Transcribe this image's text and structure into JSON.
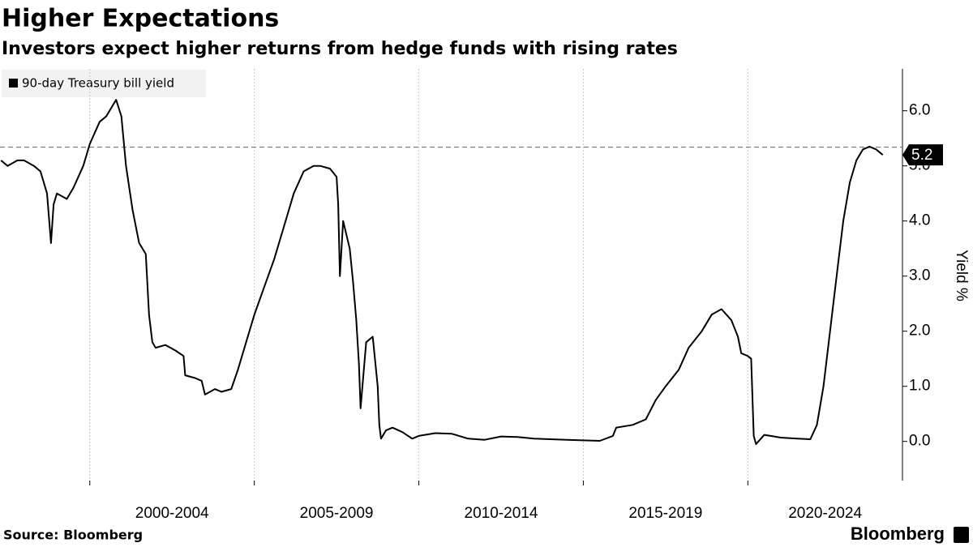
{
  "chart_data": {
    "type": "line",
    "title": "Higher Expectations",
    "subtitle": "Investors expect higher returns from hedge funds with rising rates",
    "source": "Source: Bloomberg",
    "brand": "Bloomberg",
    "y_axis_label": "Yield %",
    "xlim": [
      1997.27,
      2024.7
    ],
    "xticks": [
      {
        "value": 2000,
        "label": "2000-2004"
      },
      {
        "value": 2005,
        "label": "2005-2009"
      },
      {
        "value": 2010,
        "label": "2010-2014"
      },
      {
        "value": 2015,
        "label": "2015-2019"
      },
      {
        "value": 2020,
        "label": "2020-2024"
      }
    ],
    "ylim": [
      -0.71,
      6.76
    ],
    "yticks": [
      {
        "value": 0,
        "label": "0.0"
      },
      {
        "value": 1,
        "label": "1.0"
      },
      {
        "value": 2,
        "label": "2.0"
      },
      {
        "value": 3,
        "label": "3.0"
      },
      {
        "value": 4,
        "label": "4.0"
      },
      {
        "value": 5,
        "label": "5.0"
      },
      {
        "value": 6,
        "label": "6.0"
      }
    ],
    "grid": "x",
    "reference_line": {
      "value": 5.34,
      "color": "#e0474c"
    },
    "last_value": 5.2,
    "series": [
      {
        "name": "90-day Treasury bill yield",
        "color": "#000000",
        "x": [
          1997.3,
          1997.5,
          1997.8,
          1998.0,
          1998.3,
          1998.5,
          1998.7,
          1998.82,
          1998.9,
          1999.0,
          1999.3,
          1999.5,
          1999.8,
          2000.0,
          2000.3,
          2000.5,
          2000.8,
          2000.96,
          2001.1,
          2001.3,
          2001.5,
          2001.7,
          2001.8,
          2001.9,
          2002.0,
          2002.3,
          2002.6,
          2002.85,
          2002.9,
          2003.2,
          2003.4,
          2003.5,
          2003.8,
          2004.0,
          2004.3,
          2004.5,
          2004.7,
          2005.0,
          2005.3,
          2005.6,
          2005.9,
          2006.2,
          2006.5,
          2006.8,
          2007.0,
          2007.3,
          2007.5,
          2007.55,
          2007.6,
          2007.7,
          2007.9,
          2008.0,
          2008.1,
          2008.18,
          2008.23,
          2008.4,
          2008.6,
          2008.75,
          2008.8,
          2008.85,
          2009.0,
          2009.2,
          2009.5,
          2009.8,
          2010.0,
          2010.5,
          2011.0,
          2011.5,
          2012.0,
          2012.5,
          2013.0,
          2013.5,
          2014.0,
          2014.5,
          2015.0,
          2015.5,
          2015.9,
          2016.0,
          2016.5,
          2016.9,
          2017.2,
          2017.5,
          2017.9,
          2018.2,
          2018.6,
          2018.9,
          2019.2,
          2019.5,
          2019.7,
          2019.8,
          2020.0,
          2020.1,
          2020.18,
          2020.25,
          2020.5,
          2020.8,
          2021.0,
          2021.5,
          2021.9,
          2022.1,
          2022.3,
          2022.5,
          2022.7,
          2022.9,
          2023.1,
          2023.3,
          2023.5,
          2023.7,
          2023.9,
          2024.1
        ],
        "values": [
          5.1,
          5.0,
          5.1,
          5.1,
          5.0,
          4.9,
          4.5,
          3.6,
          4.3,
          4.5,
          4.4,
          4.6,
          5.0,
          5.4,
          5.8,
          5.9,
          6.2,
          5.9,
          5.0,
          4.2,
          3.6,
          3.4,
          2.3,
          1.8,
          1.7,
          1.75,
          1.65,
          1.55,
          1.2,
          1.15,
          1.1,
          0.85,
          0.95,
          0.9,
          0.95,
          1.3,
          1.7,
          2.3,
          2.8,
          3.3,
          3.9,
          4.5,
          4.9,
          5.0,
          5.0,
          4.95,
          4.8,
          4.3,
          3.0,
          4.0,
          3.5,
          2.9,
          2.2,
          1.4,
          0.6,
          1.8,
          1.9,
          1.0,
          0.3,
          0.05,
          0.2,
          0.25,
          0.17,
          0.05,
          0.1,
          0.15,
          0.14,
          0.05,
          0.03,
          0.09,
          0.08,
          0.05,
          0.04,
          0.03,
          0.02,
          0.01,
          0.1,
          0.25,
          0.3,
          0.4,
          0.75,
          1.0,
          1.3,
          1.7,
          2.0,
          2.3,
          2.4,
          2.2,
          1.9,
          1.6,
          1.55,
          1.5,
          0.1,
          -0.05,
          0.12,
          0.09,
          0.07,
          0.05,
          0.04,
          0.3,
          1.0,
          2.0,
          3.0,
          4.0,
          4.7,
          5.1,
          5.3,
          5.35,
          5.3,
          5.2
        ]
      }
    ]
  }
}
